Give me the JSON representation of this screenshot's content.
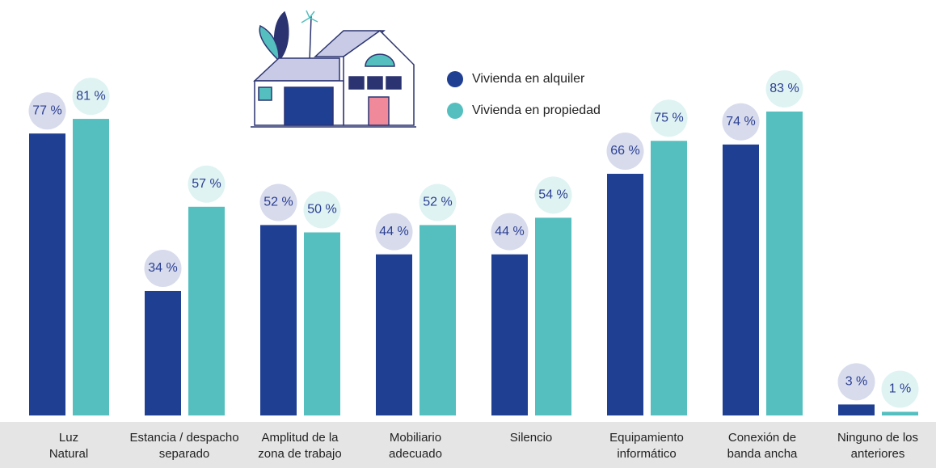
{
  "chart_data": {
    "type": "bar",
    "categories": [
      "Luz\nNatural",
      "Estancia / despacho\nseparado",
      "Amplitud de la\nzona de trabajo",
      "Mobiliario\nadecuado",
      "Silencio",
      "Equipamiento\ninformático",
      "Conexión de\nbanda ancha",
      "Ninguno de los\nanteriores"
    ],
    "series": [
      {
        "name": "Vivienda en alquiler",
        "color": "#1f3f93",
        "values": [
          77,
          34,
          52,
          44,
          44,
          66,
          74,
          3
        ],
        "value_labels": [
          "77 %",
          "34 %",
          "52 %",
          "44 %",
          "44 %",
          "66 %",
          "74 %",
          "3 %"
        ]
      },
      {
        "name": "Vivienda en propiedad",
        "color": "#55bfbf",
        "values": [
          81,
          57,
          50,
          52,
          54,
          75,
          83,
          1
        ],
        "value_labels": [
          "81 %",
          "57 %",
          "50 %",
          "52 %",
          "54 %",
          "75 %",
          "83 %",
          "1 %"
        ]
      }
    ],
    "ylim": [
      0,
      100
    ],
    "legend": "top"
  }
}
